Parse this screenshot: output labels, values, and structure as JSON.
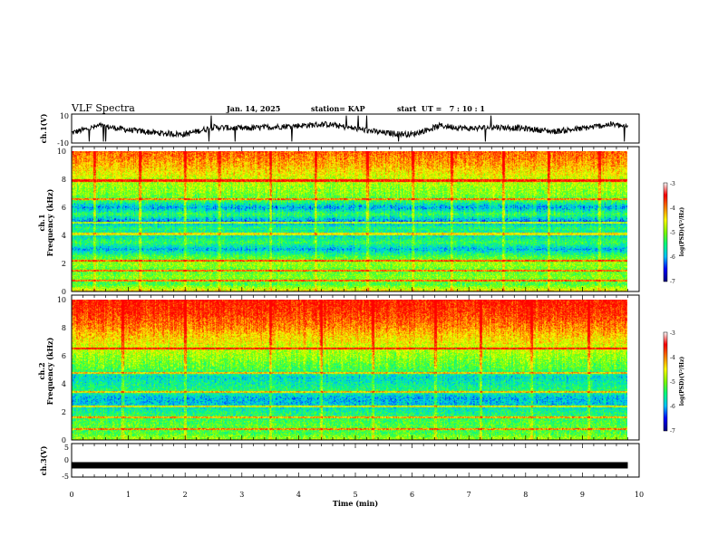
{
  "header": {
    "title": "VLF Spectra",
    "date": "Jan. 14, 2025",
    "station": "station= KAP",
    "start_ut": "start  UT =   7 : 10 : 1"
  },
  "panels": {
    "ch1_wave": {
      "ylabel": "ch.1(V)",
      "ticks": [
        "10",
        "-10"
      ]
    },
    "ch1_spec": {
      "ylabel_top": "ch.1",
      "ylabel": "Frequency (kHz)",
      "ticks": [
        "10",
        "8",
        "6",
        "4",
        "2",
        "0"
      ]
    },
    "ch2_spec": {
      "ylabel_top": "ch.2",
      "ylabel": "Frequency (kHz)",
      "ticks": [
        "10",
        "8",
        "6",
        "4",
        "2",
        "0"
      ]
    },
    "ch3_wave": {
      "ylabel": "ch.3(V)",
      "ticks": [
        "5",
        "0",
        "-5"
      ]
    }
  },
  "colorbar": {
    "label": "log(PSD)(V²/Hz)",
    "ticks": [
      "-3",
      "-4",
      "-5",
      "-6",
      "-7"
    ],
    "range": [
      -7,
      -3
    ],
    "colors": [
      "#000080",
      "#0000ff",
      "#00c0ff",
      "#00ff80",
      "#80ff00",
      "#ffff00",
      "#ff8000",
      "#ff0000",
      "#ffffff"
    ]
  },
  "xaxis": {
    "label": "Time (min)",
    "ticks": [
      "0",
      "1",
      "2",
      "3",
      "4",
      "5",
      "6",
      "7",
      "8",
      "9",
      "10"
    ]
  },
  "chart_data": [
    {
      "type": "line",
      "panel": "ch.1 waveform",
      "ylabel": "ch.1(V)",
      "xlabel": "Time (min)",
      "xlim": [
        0,
        10
      ],
      "ylim": [
        -10,
        10
      ],
      "x": [
        0,
        0.5,
        1,
        1.5,
        2,
        2.5,
        3,
        3.5,
        4,
        4.5,
        5,
        5.5,
        6,
        6.5,
        7,
        7.5,
        8,
        8.5,
        9,
        9.5,
        9.8
      ],
      "y": [
        -3,
        2,
        -1,
        -3,
        -4,
        1,
        0,
        1,
        2,
        3,
        0,
        -3,
        -4,
        2,
        0,
        1,
        0,
        -2,
        0,
        3,
        1
      ]
    },
    {
      "type": "heatmap",
      "panel": "ch.1 spectrogram",
      "ylabel": "Frequency (kHz)",
      "xlim": [
        0,
        10
      ],
      "ylim": [
        0,
        10
      ],
      "zlim": [
        -7,
        -3
      ],
      "freq_profile_khz": [
        0,
        0.5,
        1,
        1.5,
        2,
        2.5,
        3,
        3.5,
        4,
        4.5,
        5,
        5.5,
        6,
        6.5,
        7,
        7.5,
        8,
        8.5,
        9,
        9.5,
        10
      ],
      "log_psd": [
        -4.0,
        -5.0,
        -4.7,
        -4.9,
        -4.6,
        -5.0,
        -5.8,
        -5.1,
        -5.6,
        -5.2,
        -6.0,
        -5.1,
        -5.9,
        -5.0,
        -4.7,
        -4.6,
        -4.4,
        -4.1,
        -3.8,
        -3.6,
        -3.4
      ],
      "line_freqs_khz": [
        0.8,
        1.5,
        2.2,
        4.1,
        4.9,
        6.6,
        7.9
      ],
      "bursts_min": [
        0.4,
        1.2,
        2.0,
        2.6,
        3.5,
        4.3,
        5.2,
        6.0,
        6.7,
        7.6,
        8.4,
        9.3
      ]
    },
    {
      "type": "heatmap",
      "panel": "ch.2 spectrogram",
      "ylabel": "Frequency (kHz)",
      "xlim": [
        0,
        10
      ],
      "ylim": [
        0,
        10
      ],
      "zlim": [
        -7,
        -3
      ],
      "freq_profile_khz": [
        0,
        0.5,
        1,
        1.5,
        2,
        2.5,
        3,
        3.5,
        4,
        4.5,
        5,
        5.5,
        6,
        6.5,
        7,
        7.5,
        8,
        8.5,
        9,
        9.5,
        10
      ],
      "log_psd": [
        -4.5,
        -5.0,
        -4.9,
        -5.1,
        -5.3,
        -5.7,
        -5.8,
        -5.2,
        -5.4,
        -5.6,
        -5.0,
        -4.8,
        -4.6,
        -4.4,
        -4.1,
        -3.9,
        -3.6,
        -3.4,
        -3.2,
        -3.1,
        -3.0
      ],
      "line_freqs_khz": [
        0.8,
        1.6,
        2.4,
        3.4,
        4.8,
        6.5
      ],
      "bursts_min": [
        0.9,
        2.0,
        3.5,
        4.4,
        5.3,
        6.4,
        7.2,
        8.1,
        9.1
      ]
    },
    {
      "type": "line",
      "panel": "ch.3 waveform",
      "ylabel": "ch.3(V)",
      "xlim": [
        0,
        10
      ],
      "ylim": [
        -5,
        5
      ],
      "x": [
        0,
        9.8
      ],
      "y": [
        -1.5,
        -1.5
      ]
    }
  ]
}
